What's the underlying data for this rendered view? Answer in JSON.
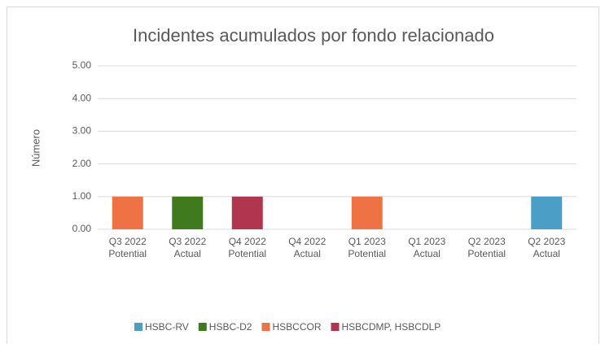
{
  "chart_data": {
    "type": "stacked_bar",
    "title": "Incidentes acumulados por fondo relacionado",
    "y_label": "Número",
    "categories": [
      [
        "Q3 2022",
        "Potential"
      ],
      [
        "Q3 2022",
        "Actual"
      ],
      [
        "Q4 2022",
        "Potential"
      ],
      [
        "Q4 2022",
        "Actual"
      ],
      [
        "Q1 2023",
        "Potential"
      ],
      [
        "Q1 2023",
        "Actual"
      ],
      [
        "Q2 2023",
        "Potential"
      ],
      [
        "Q2 2023",
        "Actual"
      ]
    ],
    "series": [
      {
        "name": "HSBC-RV",
        "color": "#4b9fc6",
        "values": [
          0,
          0,
          0,
          0,
          0,
          0,
          0,
          1
        ]
      },
      {
        "name": "HSBC-D2",
        "color": "#3f7a1f",
        "values": [
          0,
          1,
          0,
          0,
          0,
          0,
          0,
          0
        ]
      },
      {
        "name": "HSBCCOR",
        "color": "#ef7245",
        "values": [
          1,
          0,
          0,
          0,
          1,
          0,
          0,
          0
        ]
      },
      {
        "name": "HSBCDMP, HSBCDLP",
        "color": "#b0354f",
        "values": [
          0,
          0,
          1,
          0,
          0,
          0,
          0,
          0
        ]
      }
    ],
    "ylim": [
      0,
      5
    ],
    "yticks": [
      {
        "value": 0,
        "label": "0.00"
      },
      {
        "value": 1,
        "label": "1.00"
      },
      {
        "value": 2,
        "label": "2.00"
      },
      {
        "value": 3,
        "label": "3.00"
      },
      {
        "value": 4,
        "label": "4.00"
      },
      {
        "value": 5,
        "label": "5.00"
      }
    ],
    "grid": true,
    "legend": "bottom"
  }
}
